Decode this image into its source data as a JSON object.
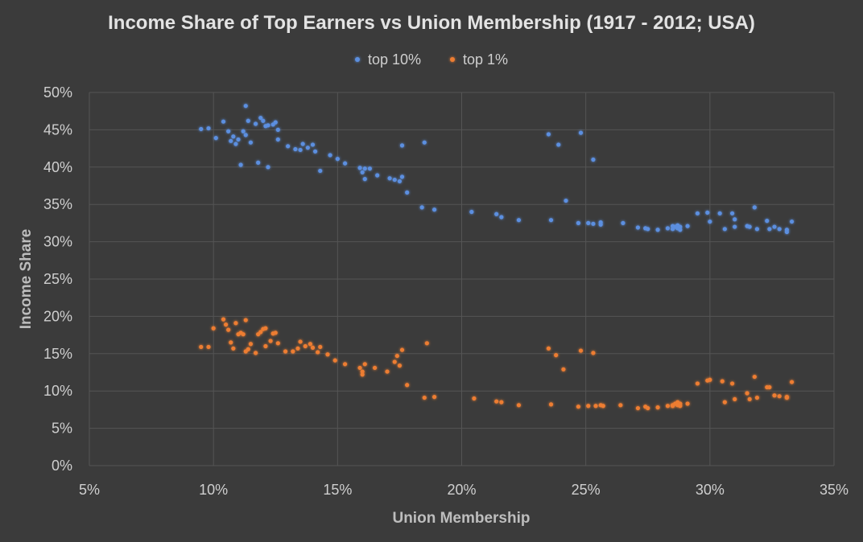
{
  "chart_data": {
    "type": "scatter",
    "title": "Income Share of Top Earners vs Union Membership (1917 - 2012; USA)",
    "xlabel": "Union Membership",
    "ylabel": "Income Share",
    "xlim": [
      0.05,
      0.35
    ],
    "ylim": [
      0.0,
      0.5
    ],
    "x_ticks": [
      "5%",
      "10%",
      "15%",
      "20%",
      "25%",
      "30%",
      "35%"
    ],
    "y_ticks": [
      "0%",
      "5%",
      "10%",
      "15%",
      "20%",
      "25%",
      "30%",
      "35%",
      "40%",
      "45%",
      "50%"
    ],
    "grid": true,
    "legend_position": "top",
    "series": [
      {
        "name": "top 10%",
        "color": "#5b8fe0",
        "points": [
          [
            0.095,
            0.451
          ],
          [
            0.098,
            0.452
          ],
          [
            0.101,
            0.439
          ],
          [
            0.104,
            0.461
          ],
          [
            0.106,
            0.448
          ],
          [
            0.107,
            0.435
          ],
          [
            0.108,
            0.441
          ],
          [
            0.109,
            0.431
          ],
          [
            0.11,
            0.437
          ],
          [
            0.111,
            0.403
          ],
          [
            0.112,
            0.448
          ],
          [
            0.113,
            0.443
          ],
          [
            0.113,
            0.482
          ],
          [
            0.114,
            0.462
          ],
          [
            0.115,
            0.433
          ],
          [
            0.117,
            0.458
          ],
          [
            0.118,
            0.406
          ],
          [
            0.119,
            0.466
          ],
          [
            0.12,
            0.462
          ],
          [
            0.121,
            0.455
          ],
          [
            0.122,
            0.456
          ],
          [
            0.122,
            0.4
          ],
          [
            0.124,
            0.457
          ],
          [
            0.125,
            0.46
          ],
          [
            0.126,
            0.437
          ],
          [
            0.126,
            0.45
          ],
          [
            0.13,
            0.428
          ],
          [
            0.133,
            0.424
          ],
          [
            0.135,
            0.423
          ],
          [
            0.136,
            0.431
          ],
          [
            0.138,
            0.426
          ],
          [
            0.14,
            0.43
          ],
          [
            0.141,
            0.421
          ],
          [
            0.143,
            0.395
          ],
          [
            0.147,
            0.416
          ],
          [
            0.15,
            0.411
          ],
          [
            0.153,
            0.405
          ],
          [
            0.159,
            0.399
          ],
          [
            0.16,
            0.393
          ],
          [
            0.161,
            0.398
          ],
          [
            0.161,
            0.384
          ],
          [
            0.163,
            0.398
          ],
          [
            0.166,
            0.389
          ],
          [
            0.171,
            0.385
          ],
          [
            0.173,
            0.383
          ],
          [
            0.175,
            0.381
          ],
          [
            0.176,
            0.387
          ],
          [
            0.176,
            0.429
          ],
          [
            0.178,
            0.366
          ],
          [
            0.184,
            0.346
          ],
          [
            0.185,
            0.433
          ],
          [
            0.189,
            0.343
          ],
          [
            0.204,
            0.34
          ],
          [
            0.214,
            0.337
          ],
          [
            0.216,
            0.333
          ],
          [
            0.223,
            0.329
          ],
          [
            0.235,
            0.444
          ],
          [
            0.236,
            0.329
          ],
          [
            0.239,
            0.43
          ],
          [
            0.242,
            0.355
          ],
          [
            0.247,
            0.325
          ],
          [
            0.248,
            0.446
          ],
          [
            0.251,
            0.325
          ],
          [
            0.253,
            0.41
          ],
          [
            0.253,
            0.324
          ],
          [
            0.256,
            0.326
          ],
          [
            0.256,
            0.323
          ],
          [
            0.265,
            0.325
          ],
          [
            0.271,
            0.319
          ],
          [
            0.274,
            0.318
          ],
          [
            0.275,
            0.317
          ],
          [
            0.279,
            0.316
          ],
          [
            0.283,
            0.318
          ],
          [
            0.285,
            0.321
          ],
          [
            0.285,
            0.317
          ],
          [
            0.286,
            0.32
          ],
          [
            0.287,
            0.322
          ],
          [
            0.287,
            0.318
          ],
          [
            0.288,
            0.316
          ],
          [
            0.288,
            0.32
          ],
          [
            0.291,
            0.321
          ],
          [
            0.295,
            0.338
          ],
          [
            0.299,
            0.339
          ],
          [
            0.3,
            0.327
          ],
          [
            0.304,
            0.338
          ],
          [
            0.306,
            0.317
          ],
          [
            0.309,
            0.338
          ],
          [
            0.31,
            0.33
          ],
          [
            0.31,
            0.32
          ],
          [
            0.315,
            0.321
          ],
          [
            0.316,
            0.32
          ],
          [
            0.318,
            0.346
          ],
          [
            0.319,
            0.317
          ],
          [
            0.323,
            0.328
          ],
          [
            0.324,
            0.317
          ],
          [
            0.326,
            0.32
          ],
          [
            0.328,
            0.317
          ],
          [
            0.331,
            0.316
          ],
          [
            0.331,
            0.313
          ],
          [
            0.333,
            0.327
          ]
        ]
      },
      {
        "name": "top 1%",
        "color": "#ed7d31",
        "points": [
          [
            0.095,
            0.159
          ],
          [
            0.098,
            0.159
          ],
          [
            0.1,
            0.184
          ],
          [
            0.104,
            0.196
          ],
          [
            0.105,
            0.189
          ],
          [
            0.106,
            0.182
          ],
          [
            0.107,
            0.165
          ],
          [
            0.108,
            0.157
          ],
          [
            0.109,
            0.191
          ],
          [
            0.11,
            0.176
          ],
          [
            0.111,
            0.178
          ],
          [
            0.112,
            0.176
          ],
          [
            0.113,
            0.195
          ],
          [
            0.113,
            0.153
          ],
          [
            0.114,
            0.156
          ],
          [
            0.115,
            0.163
          ],
          [
            0.117,
            0.151
          ],
          [
            0.118,
            0.176
          ],
          [
            0.119,
            0.179
          ],
          [
            0.12,
            0.183
          ],
          [
            0.121,
            0.184
          ],
          [
            0.121,
            0.16
          ],
          [
            0.123,
            0.167
          ],
          [
            0.124,
            0.177
          ],
          [
            0.125,
            0.178
          ],
          [
            0.126,
            0.164
          ],
          [
            0.129,
            0.153
          ],
          [
            0.132,
            0.153
          ],
          [
            0.134,
            0.157
          ],
          [
            0.135,
            0.166
          ],
          [
            0.137,
            0.16
          ],
          [
            0.139,
            0.163
          ],
          [
            0.14,
            0.158
          ],
          [
            0.142,
            0.152
          ],
          [
            0.143,
            0.159
          ],
          [
            0.146,
            0.149
          ],
          [
            0.149,
            0.141
          ],
          [
            0.153,
            0.136
          ],
          [
            0.159,
            0.131
          ],
          [
            0.16,
            0.126
          ],
          [
            0.16,
            0.122
          ],
          [
            0.161,
            0.136
          ],
          [
            0.165,
            0.131
          ],
          [
            0.17,
            0.126
          ],
          [
            0.173,
            0.139
          ],
          [
            0.174,
            0.147
          ],
          [
            0.175,
            0.134
          ],
          [
            0.176,
            0.155
          ],
          [
            0.178,
            0.108
          ],
          [
            0.185,
            0.091
          ],
          [
            0.186,
            0.164
          ],
          [
            0.189,
            0.092
          ],
          [
            0.205,
            0.09
          ],
          [
            0.214,
            0.086
          ],
          [
            0.216,
            0.085
          ],
          [
            0.223,
            0.081
          ],
          [
            0.235,
            0.157
          ],
          [
            0.236,
            0.082
          ],
          [
            0.238,
            0.148
          ],
          [
            0.241,
            0.129
          ],
          [
            0.247,
            0.079
          ],
          [
            0.248,
            0.154
          ],
          [
            0.251,
            0.08
          ],
          [
            0.253,
            0.151
          ],
          [
            0.254,
            0.08
          ],
          [
            0.256,
            0.081
          ],
          [
            0.257,
            0.08
          ],
          [
            0.264,
            0.081
          ],
          [
            0.271,
            0.077
          ],
          [
            0.274,
            0.079
          ],
          [
            0.275,
            0.077
          ],
          [
            0.279,
            0.078
          ],
          [
            0.283,
            0.08
          ],
          [
            0.285,
            0.081
          ],
          [
            0.285,
            0.08
          ],
          [
            0.286,
            0.083
          ],
          [
            0.287,
            0.085
          ],
          [
            0.287,
            0.081
          ],
          [
            0.288,
            0.08
          ],
          [
            0.288,
            0.083
          ],
          [
            0.291,
            0.083
          ],
          [
            0.295,
            0.11
          ],
          [
            0.299,
            0.114
          ],
          [
            0.3,
            0.115
          ],
          [
            0.305,
            0.113
          ],
          [
            0.306,
            0.085
          ],
          [
            0.309,
            0.11
          ],
          [
            0.31,
            0.089
          ],
          [
            0.315,
            0.097
          ],
          [
            0.316,
            0.089
          ],
          [
            0.318,
            0.119
          ],
          [
            0.319,
            0.091
          ],
          [
            0.323,
            0.105
          ],
          [
            0.324,
            0.105
          ],
          [
            0.326,
            0.094
          ],
          [
            0.328,
            0.093
          ],
          [
            0.331,
            0.092
          ],
          [
            0.331,
            0.091
          ],
          [
            0.333,
            0.112
          ]
        ]
      }
    ]
  }
}
